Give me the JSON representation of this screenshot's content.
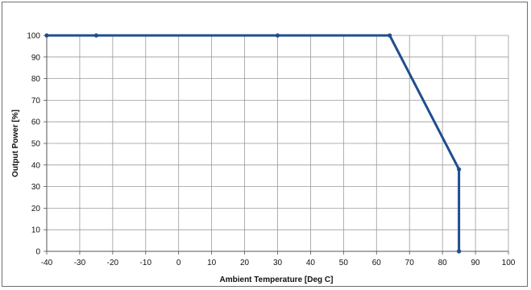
{
  "chart_data": {
    "type": "line",
    "xlabel": "Ambient Temperature [Deg C]",
    "ylabel": "Output Power [%]",
    "xlim": [
      -40,
      100
    ],
    "ylim": [
      0,
      100
    ],
    "x_ticks": [
      -40,
      -30,
      -20,
      -10,
      0,
      10,
      20,
      30,
      40,
      50,
      60,
      70,
      80,
      90,
      100
    ],
    "y_ticks": [
      0,
      10,
      20,
      30,
      40,
      50,
      60,
      70,
      80,
      90,
      100
    ],
    "grid": true,
    "series": [
      {
        "x": [
          -40,
          -25,
          30,
          64,
          85,
          85
        ],
        "y": [
          100,
          100,
          100,
          100,
          38,
          0
        ]
      }
    ],
    "colors": {
      "line": "#1f4e8c",
      "grid": "#9a9a9a",
      "axis": "#555555"
    }
  }
}
